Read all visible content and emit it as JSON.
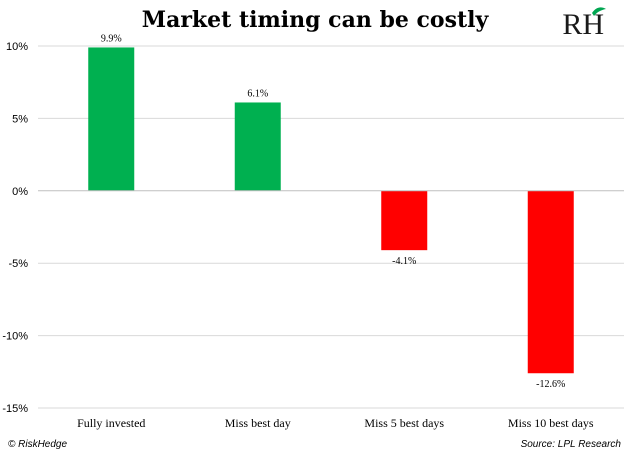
{
  "chart_data": {
    "type": "bar",
    "title": "Market timing can be costly",
    "categories": [
      "Fully invested",
      "Miss best day",
      "Miss 5 best days",
      "Miss 10 best days"
    ],
    "values": [
      9.9,
      6.1,
      -4.1,
      -12.6
    ],
    "data_labels": [
      "9.9%",
      "6.1%",
      "-4.1%",
      "-12.6%"
    ],
    "ylim": [
      -15,
      10
    ],
    "yticks": [
      10,
      5,
      0,
      -5,
      -10,
      -15
    ],
    "ytick_labels": [
      "10%",
      "5%",
      "0%",
      "-5%",
      "-10%",
      "-15%"
    ],
    "grid": true,
    "colors": {
      "positive": "#00b050",
      "negative": "#ff0000",
      "grid": "#d9d9d9",
      "zero_line": "#bfbfbf"
    }
  },
  "branding": {
    "logo_text": "RH",
    "copyright": "© RiskHedge",
    "source": "Source: LPL Research"
  }
}
